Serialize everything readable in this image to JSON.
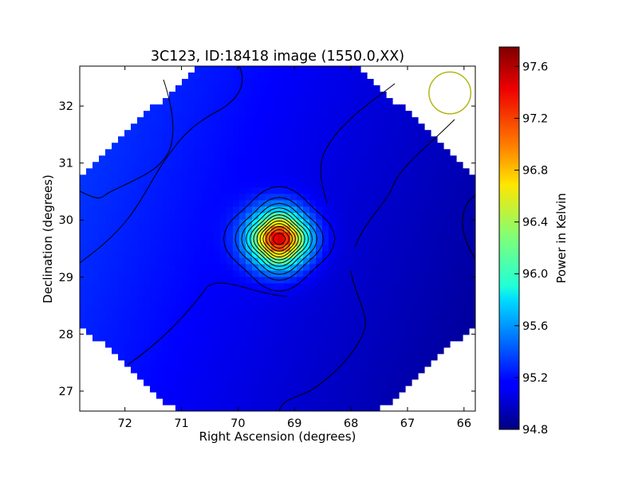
{
  "chart_data": {
    "type": "heatmap",
    "title": "3C123, ID:18418 image (1550.0,XX)",
    "xlabel": "Right Ascension (degrees)",
    "ylabel": "Declination (degrees)",
    "xlim": [
      72.8,
      65.8
    ],
    "ylim": [
      26.65,
      32.7
    ],
    "x_ticks": [
      72,
      71,
      70,
      69,
      68,
      67,
      66
    ],
    "y_ticks": [
      27,
      28,
      29,
      30,
      31,
      32
    ],
    "colorbar": {
      "label": "Power in Kelvin",
      "range": [
        94.8,
        97.75
      ],
      "ticks": [
        "94.8",
        "95.2",
        "95.6",
        "96.0",
        "96.4",
        "96.8",
        "97.2",
        "97.6"
      ],
      "colormap": "jet"
    },
    "source": {
      "name": "3C123",
      "ra": 69.27,
      "dec": 29.67,
      "peak": 97.75
    },
    "background_level": 95.3,
    "beam_circle": {
      "ra": 66.25,
      "dec": 32.23,
      "radius_deg": 0.37,
      "color": "#b5b51a"
    },
    "contour_levels": [
      95.2,
      95.4,
      95.6,
      95.8,
      96.0,
      96.2,
      96.4,
      96.6,
      96.8,
      97.0,
      97.2,
      97.4,
      97.6
    ]
  }
}
